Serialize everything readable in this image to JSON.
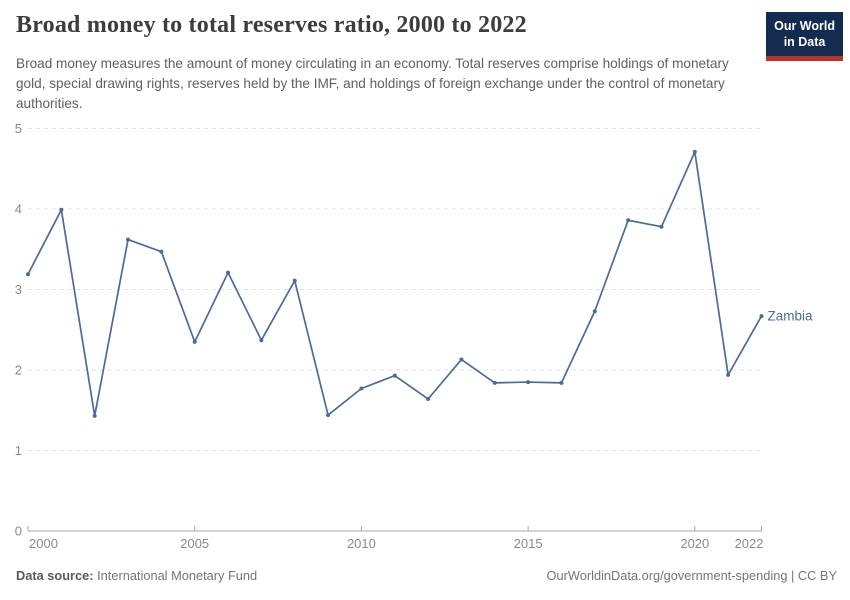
{
  "header": {
    "title": "Broad money to total reserves ratio, 2000 to 2022",
    "subtitle": "Broad money measures the amount of money circulating in an economy. Total reserves comprise holdings of monetary gold, special drawing rights, reserves held by the IMF, and holdings of foreign exchange under the control of monetary authorities.",
    "logo": {
      "line1": "Our World",
      "line2": "in Data",
      "bg_color": "#122b4f",
      "accent_color": "#bc2f2a",
      "text_color": "#ffffff"
    }
  },
  "chart_data": {
    "type": "line",
    "title": "Broad money to total reserves ratio, 2000 to 2022",
    "xlabel": "",
    "ylabel": "",
    "x": [
      2000,
      2001,
      2002,
      2003,
      2004,
      2005,
      2006,
      2007,
      2008,
      2009,
      2010,
      2011,
      2012,
      2013,
      2014,
      2015,
      2016,
      2017,
      2018,
      2019,
      2020,
      2021,
      2022
    ],
    "series": [
      {
        "name": "Zambia",
        "color": "#4c6a9c",
        "values": [
          3.19,
          3.99,
          1.43,
          3.62,
          3.47,
          2.35,
          3.21,
          2.37,
          3.11,
          1.44,
          1.77,
          1.93,
          1.64,
          2.13,
          1.84,
          1.85,
          1.84,
          2.73,
          3.86,
          3.78,
          4.71,
          1.94,
          2.67
        ]
      }
    ],
    "xlim": [
      2000,
      2022
    ],
    "ylim": [
      0,
      5
    ],
    "x_ticks": [
      2000,
      2005,
      2010,
      2015,
      2020,
      2022
    ],
    "y_ticks": [
      0,
      1,
      2,
      3,
      4,
      5
    ],
    "grid": "horizontal-dashed",
    "legend_position": "end-of-line"
  },
  "footer": {
    "source_label": "Data source:",
    "source_value": "International Monetary Fund",
    "credit": "OurWorldinData.org/government-spending | CC BY"
  },
  "colors": {
    "line": "#4c6a9c",
    "grid": "#e2e2e2",
    "axis": "#a7a7a7",
    "tick_label": "#8a8a8a",
    "title": "#3d3d3d",
    "subtitle": "#5f5f5f",
    "footer": "#757575"
  }
}
